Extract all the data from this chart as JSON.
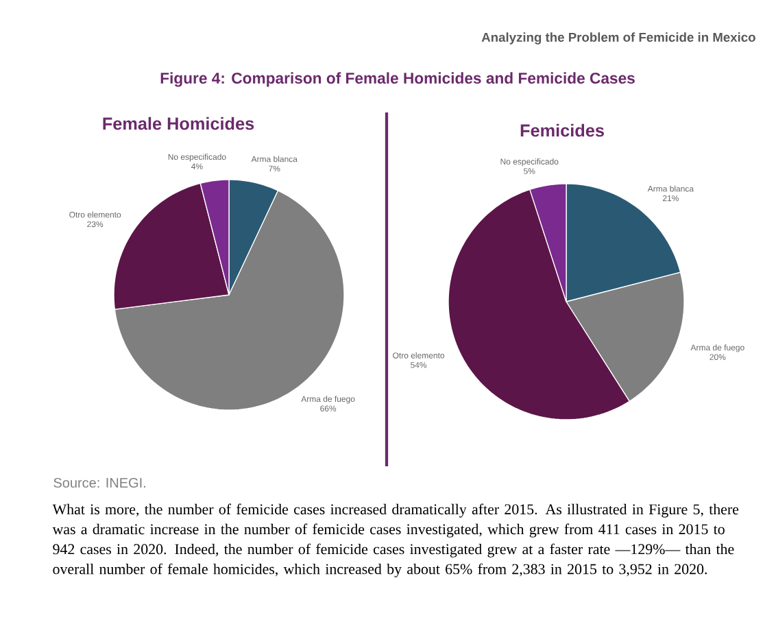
{
  "chart_data": [
    {
      "type": "pie",
      "title": "Female Homicides",
      "categories": [
        "Arma blanca",
        "Arma de fuego",
        "Otro elemento",
        "No especificado"
      ],
      "values": [
        7,
        66,
        23,
        4
      ],
      "value_labels": [
        "7%",
        "66%",
        "23%",
        "4%"
      ],
      "colors": [
        "#2a5a73",
        "#7f7f7f",
        "#5c1548",
        "#7b2a8f"
      ],
      "annotations": [
        "Analyzing the Problem of Femicide in Mexico",
        "Figure 4: Comparison of Female Homicides and Femicide Cases",
        "Source: INEGI.",
        "What is more, the number of femicide cases increased dramatically after 2015. As illustrated in Figure 5, there was a dramatic increase in the number of femicide cases investigated, which grew from 411 cases in 2015 to 942 cases in 2020. Indeed, the number of femicide cases investigated grew at a faster rate —129%— than the overall number of female homicides, which increased by about 65% from 2,383 in 2015 to 3,952 in 2020."
      ]
    },
    {
      "type": "pie",
      "title": "Femicides",
      "categories": [
        "Arma blanca",
        "Arma de fuego",
        "Otro elemento",
        "No especificado"
      ],
      "values": [
        21,
        20,
        54,
        5
      ],
      "value_labels": [
        "21%",
        "20%",
        "54%",
        "5%"
      ],
      "colors": [
        "#2a5a73",
        "#7f7f7f",
        "#5c1548",
        "#7b2a8f"
      ]
    }
  ]
}
